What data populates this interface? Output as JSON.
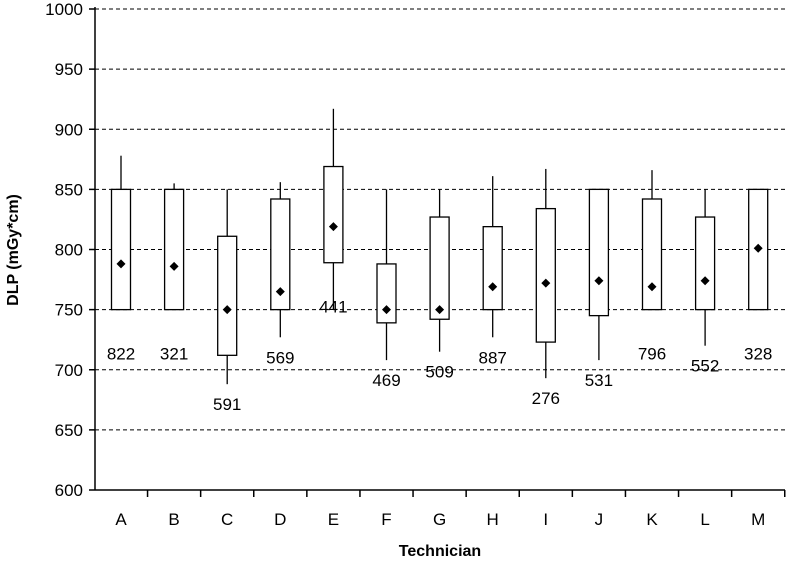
{
  "chart_data": {
    "type": "boxplot",
    "xlabel": "Technician",
    "ylabel": "DLP (mGy*cm)",
    "ylim": [
      600,
      1000
    ],
    "yticks": [
      600,
      650,
      700,
      750,
      800,
      850,
      900,
      950,
      1000
    ],
    "grid": true,
    "categories": [
      "A",
      "B",
      "C",
      "D",
      "E",
      "F",
      "G",
      "H",
      "I",
      "J",
      "K",
      "L",
      "M"
    ],
    "groups": [
      {
        "label": "A",
        "whisker_low": 750,
        "q1": 750,
        "q3": 850,
        "whisker_high": 878,
        "mean": 788,
        "n": "822"
      },
      {
        "label": "B",
        "whisker_low": 750,
        "q1": 750,
        "q3": 850,
        "whisker_high": 855,
        "mean": 786,
        "n": "321"
      },
      {
        "label": "C",
        "whisker_low": 688,
        "q1": 712,
        "q3": 811,
        "whisker_high": 850,
        "mean": 750,
        "n": "591"
      },
      {
        "label": "D",
        "whisker_low": 727,
        "q1": 750,
        "q3": 842,
        "whisker_high": 856,
        "mean": 765,
        "n": "569"
      },
      {
        "label": "E",
        "whisker_low": 750,
        "q1": 789,
        "q3": 869,
        "whisker_high": 917,
        "mean": 819,
        "n": "441"
      },
      {
        "label": "F",
        "whisker_low": 708,
        "q1": 739,
        "q3": 788,
        "whisker_high": 850,
        "mean": 750,
        "n": "469"
      },
      {
        "label": "G",
        "whisker_low": 715,
        "q1": 742,
        "q3": 827,
        "whisker_high": 850,
        "mean": 750,
        "n": "509"
      },
      {
        "label": "H",
        "whisker_low": 727,
        "q1": 750,
        "q3": 819,
        "whisker_high": 861,
        "mean": 769,
        "n": "887"
      },
      {
        "label": "I",
        "whisker_low": 693,
        "q1": 723,
        "q3": 834,
        "whisker_high": 867,
        "mean": 772,
        "n": "276"
      },
      {
        "label": "J",
        "whisker_low": 708,
        "q1": 745,
        "q3": 850,
        "whisker_high": 850,
        "mean": 774,
        "n": "531"
      },
      {
        "label": "K",
        "whisker_low": 750,
        "q1": 750,
        "q3": 842,
        "whisker_high": 866,
        "mean": 769,
        "n": "796"
      },
      {
        "label": "L",
        "whisker_low": 720,
        "q1": 750,
        "q3": 827,
        "whisker_high": 850,
        "mean": 774,
        "n": "552"
      },
      {
        "label": "M",
        "whisker_low": 750,
        "q1": 750,
        "q3": 850,
        "whisker_high": 850,
        "mean": 801,
        "n": "328"
      }
    ],
    "n_label_position": [
      "above-box",
      "above-box",
      "below-whisker",
      "below-whisker",
      "above-box",
      "below-whisker",
      "below-whisker",
      "below-whisker",
      "below-whisker",
      "below-whisker",
      "above-box",
      "below-whisker",
      "above-box"
    ]
  }
}
